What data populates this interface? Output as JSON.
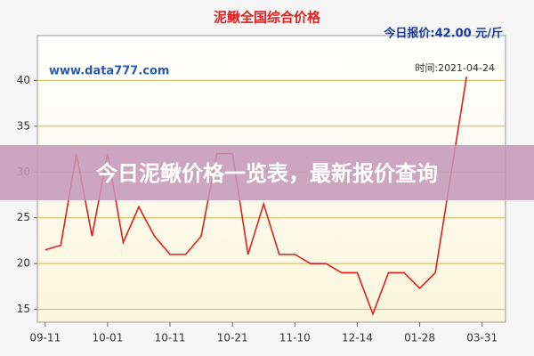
{
  "chart_data": {
    "type": "line",
    "title": "泥鳅全国综合价格",
    "price_note": "今日报价:42.00 元/斤",
    "site": "www.data777.com",
    "time_note": "时间:2021-04-24",
    "x": [
      0,
      1,
      2,
      3,
      4,
      5,
      6,
      7,
      8,
      9,
      10,
      11,
      12,
      13,
      14,
      15,
      16,
      17,
      18,
      19,
      20,
      21,
      22,
      23,
      24,
      25,
      27
    ],
    "series": [
      {
        "color": "#e02020",
        "values": [
          21.5,
          22,
          32,
          23,
          32,
          22.3,
          26.2,
          23,
          21,
          21,
          23,
          32,
          32,
          21,
          26.5,
          21,
          21,
          20,
          20,
          19,
          19,
          14.5,
          19,
          19,
          17.3,
          19,
          40.4
        ]
      }
    ],
    "xlim": [
      -0.5,
      29.5
    ],
    "xticks": [
      {
        "value": 0,
        "label": "09-11"
      },
      {
        "value": 4,
        "label": "10-01"
      },
      {
        "value": 8,
        "label": "10-11"
      },
      {
        "value": 12,
        "label": "10-21"
      },
      {
        "value": 16,
        "label": "11-10"
      },
      {
        "value": 20,
        "label": "12-14"
      },
      {
        "value": 24,
        "label": "01-28"
      },
      {
        "value": 28,
        "label": "03-31"
      }
    ],
    "ylim": [
      13.6,
      44.9
    ],
    "yticks": [
      15,
      20,
      25,
      30,
      35,
      40
    ],
    "grid": true
  },
  "banner": "今日泥鳅价格一览表，最新报价查询"
}
